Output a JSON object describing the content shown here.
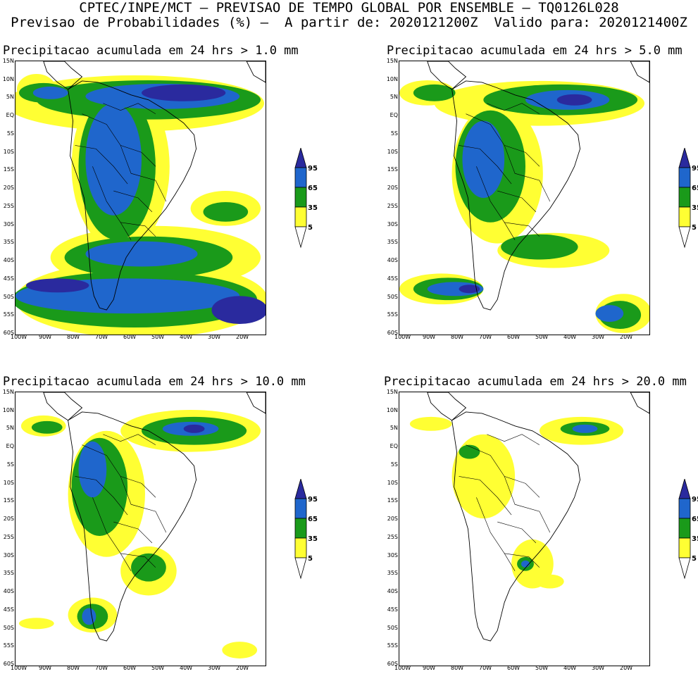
{
  "header": {
    "line1": "CPTEC/INPE/MCT – PREVISAO DE TEMPO GLOBAL POR ENSEMBLE – TQ0126L028",
    "line2": "Previsao de Probabilidades (%) –  A partir de: 2020121200Z  Valido para: 2020121400Z"
  },
  "panels": [
    {
      "title": "Precipitacao acumulada em 24 hrs > 1.0 mm"
    },
    {
      "title": "Precipitacao acumulada em 24 hrs > 5.0 mm"
    },
    {
      "title": "Precipitacao acumulada em 24 hrs > 10.0 mm"
    },
    {
      "title": "Precipitacao acumulada em 24 hrs > 20.0 mm"
    }
  ],
  "lat_labels": [
    "15N",
    "10N",
    "5N",
    "EQ",
    "5S",
    "10S",
    "15S",
    "20S",
    "25S",
    "30S",
    "35S",
    "40S",
    "45S",
    "50S",
    "55S",
    "60S"
  ],
  "lon_labels": [
    "100W",
    "90W",
    "80W",
    "70W",
    "60W",
    "50W",
    "40W",
    "30W",
    "20W"
  ],
  "legend": {
    "levels": [
      "95",
      "65",
      "35",
      "5"
    ],
    "colors": {
      "lt5": "#ffffff",
      "5-35": "#ffff33",
      "35-65": "#1a9a1a",
      "65-95": "#1f66cc",
      "gt95": "#2a2a9e"
    }
  }
}
